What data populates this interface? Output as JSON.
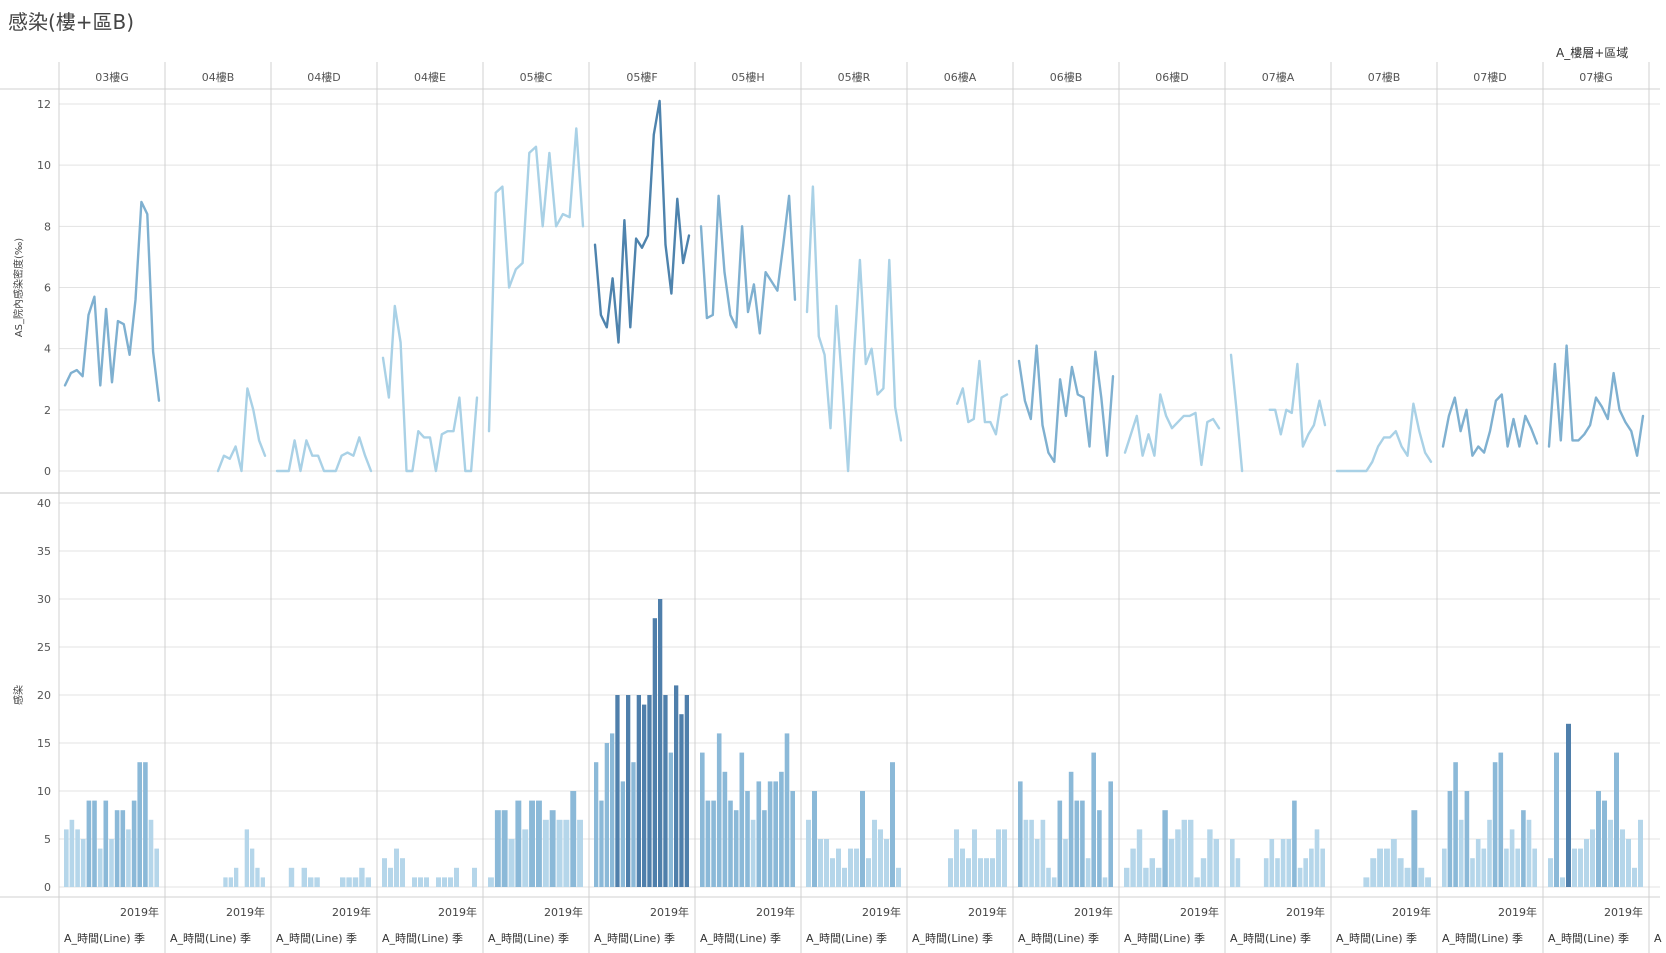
{
  "title": "感染(樓+區B)",
  "legend_title": "A_樓層+區域",
  "year_label": "2019年",
  "footer_label": "A_時間(Line) 季",
  "footer_extra": "A",
  "colors": {
    "line_light": "#a9d1e6",
    "line_mid": "#7fb0d0",
    "line_dark": "#4e83ad",
    "bar_light": "#b5d6ea",
    "bar_mid": "#8bb9d8",
    "bar_dark": "#4f7fab",
    "grid": "#e3e3e3",
    "divider": "#d0d0d0"
  },
  "chart_data": [
    {
      "type": "line",
      "ylabel": "AS_院內感染密度(‰)",
      "ylim": [
        0,
        12
      ],
      "yticks": [
        0,
        2,
        4,
        6,
        8,
        10,
        12
      ],
      "x_axis": "2019年 quarterly (A_時間(Line) 季)",
      "panels": [
        {
          "name": "03樓G",
          "shade": 1,
          "values": [
            2.8,
            3.2,
            3.3,
            3.1,
            5.1,
            5.7,
            2.8,
            5.3,
            2.9,
            4.9,
            4.8,
            3.8,
            5.6,
            8.8,
            8.4,
            3.9,
            2.3
          ]
        },
        {
          "name": "04樓B",
          "shade": 0,
          "values": [
            null,
            null,
            null,
            null,
            null,
            null,
            null,
            null,
            0,
            0.5,
            0.4,
            0.8,
            0,
            2.7,
            2.0,
            1.0,
            0.5
          ]
        },
        {
          "name": "04樓D",
          "shade": 0,
          "values": [
            0,
            0,
            0,
            1.0,
            0,
            1.0,
            0.5,
            0.5,
            0,
            0,
            0,
            0.5,
            0.6,
            0.5,
            1.1,
            0.5,
            0
          ]
        },
        {
          "name": "04樓E",
          "shade": 0,
          "values": [
            3.7,
            2.4,
            5.4,
            4.2,
            0,
            0,
            1.3,
            1.1,
            1.1,
            0,
            1.2,
            1.3,
            1.3,
            2.4,
            0,
            0,
            2.4
          ]
        },
        {
          "name": "05樓C",
          "shade": 0,
          "values": [
            1.3,
            9.1,
            9.3,
            6.0,
            6.6,
            6.8,
            10.4,
            10.6,
            8.0,
            10.4,
            8.0,
            8.4,
            8.3,
            11.2,
            8.0
          ]
        },
        {
          "name": "05樓F",
          "shade": 2,
          "values": [
            7.4,
            5.1,
            4.7,
            6.3,
            4.2,
            8.2,
            4.7,
            7.6,
            7.3,
            7.7,
            11.0,
            12.1,
            7.4,
            5.8,
            8.9,
            6.8,
            7.7
          ]
        },
        {
          "name": "05樓H",
          "shade": 1,
          "values": [
            8.0,
            5.0,
            5.1,
            9.0,
            6.5,
            5.1,
            4.7,
            8.0,
            5.2,
            6.1,
            4.5,
            6.5,
            6.2,
            5.9,
            7.4,
            9.0,
            5.6
          ]
        },
        {
          "name": "05樓R",
          "shade": 0,
          "values": [
            5.2,
            9.3,
            4.4,
            3.8,
            1.4,
            5.4,
            2.8,
            0,
            3.8,
            6.9,
            3.5,
            4.0,
            2.5,
            2.7,
            6.9,
            2.1,
            1.0
          ]
        },
        {
          "name": "06樓A",
          "shade": 0,
          "values": [
            null,
            null,
            null,
            null,
            null,
            null,
            null,
            null,
            2.2,
            2.7,
            1.6,
            1.7,
            3.6,
            1.6,
            1.6,
            1.2,
            2.4,
            2.5
          ]
        },
        {
          "name": "06樓B",
          "shade": 1,
          "values": [
            3.6,
            2.3,
            1.7,
            4.1,
            1.5,
            0.6,
            0.3,
            3.0,
            1.8,
            3.4,
            2.5,
            2.4,
            0.8,
            3.9,
            2.4,
            0.5,
            3.1
          ]
        },
        {
          "name": "06樓D",
          "shade": 0,
          "values": [
            0.6,
            1.2,
            1.8,
            0.5,
            1.2,
            0.5,
            2.5,
            1.8,
            1.4,
            1.6,
            1.8,
            1.8,
            1.9,
            0.2,
            1.6,
            1.7,
            1.4
          ]
        },
        {
          "name": "07樓A",
          "shade": 0,
          "values": [
            3.8,
            2.0,
            0,
            null,
            null,
            null,
            null,
            2.0,
            2.0,
            1.2,
            2.0,
            1.9,
            3.5,
            0.8,
            1.2,
            1.5,
            2.3,
            1.5
          ]
        },
        {
          "name": "07樓B",
          "shade": 0,
          "values": [
            0,
            0,
            0,
            0,
            0,
            0,
            0.3,
            0.8,
            1.1,
            1.1,
            1.3,
            0.8,
            0.5,
            2.2,
            1.3,
            0.6,
            0.3
          ]
        },
        {
          "name": "07樓D",
          "shade": 1,
          "values": [
            0.8,
            1.8,
            2.4,
            1.3,
            2.0,
            0.5,
            0.8,
            0.6,
            1.3,
            2.3,
            2.5,
            0.8,
            1.7,
            0.8,
            1.8,
            1.4,
            0.9
          ]
        },
        {
          "name": "07樓G",
          "shade": 1,
          "values": [
            0.8,
            3.5,
            1.0,
            4.1,
            1.0,
            1.0,
            1.2,
            1.5,
            2.4,
            2.1,
            1.7,
            3.2,
            2.0,
            1.6,
            1.3,
            0.5,
            1.8
          ]
        }
      ]
    },
    {
      "type": "bar",
      "ylabel": "感染",
      "ylim": [
        0,
        40
      ],
      "yticks": [
        0,
        5,
        10,
        15,
        20,
        25,
        30,
        35,
        40
      ],
      "x_axis": "2019年 quarterly (A_時間(Line) 季)",
      "panels": [
        {
          "name": "03樓G",
          "values": [
            6,
            7,
            6,
            5,
            9,
            9,
            4,
            9,
            5,
            8,
            8,
            6,
            9,
            13,
            13,
            7,
            4
          ]
        },
        {
          "name": "04樓B",
          "values": [
            0,
            0,
            0,
            0,
            0,
            0,
            0,
            0,
            0,
            0,
            1,
            1,
            2,
            0,
            6,
            4,
            2,
            1
          ]
        },
        {
          "name": "04樓D",
          "values": [
            0,
            0,
            2,
            0,
            2,
            1,
            1,
            0,
            0,
            0,
            1,
            1,
            1,
            2,
            1
          ]
        },
        {
          "name": "04樓E",
          "values": [
            3,
            2,
            4,
            3,
            0,
            1,
            1,
            1,
            0,
            1,
            1,
            1,
            2,
            0,
            0,
            2
          ]
        },
        {
          "name": "05樓C",
          "values": [
            1,
            8,
            8,
            5,
            9,
            6,
            9,
            9,
            7,
            8,
            7,
            7,
            10,
            7
          ]
        },
        {
          "name": "05樓F",
          "values": [
            13,
            9,
            15,
            16,
            20,
            11,
            20,
            13,
            20,
            19,
            20,
            28,
            30,
            20,
            14,
            21,
            18,
            20
          ]
        },
        {
          "name": "05樓H",
          "values": [
            14,
            9,
            9,
            16,
            12,
            9,
            8,
            14,
            10,
            7,
            11,
            8,
            11,
            11,
            12,
            16,
            10
          ]
        },
        {
          "name": "05樓R",
          "values": [
            7,
            10,
            5,
            5,
            3,
            4,
            2,
            4,
            4,
            10,
            3,
            7,
            6,
            5,
            13,
            2
          ]
        },
        {
          "name": "06樓A",
          "values": [
            0,
            0,
            0,
            0,
            0,
            0,
            3,
            6,
            4,
            3,
            6,
            3,
            3,
            3,
            6,
            6
          ]
        },
        {
          "name": "06樓B",
          "values": [
            11,
            7,
            7,
            5,
            7,
            2,
            1,
            9,
            5,
            12,
            9,
            9,
            3,
            14,
            8,
            1,
            11
          ]
        },
        {
          "name": "06樓D",
          "values": [
            2,
            4,
            6,
            2,
            3,
            2,
            8,
            5,
            6,
            7,
            7,
            1,
            3,
            6,
            5
          ]
        },
        {
          "name": "07樓A",
          "values": [
            5,
            3,
            0,
            0,
            0,
            0,
            3,
            5,
            3,
            5,
            5,
            9,
            2,
            3,
            4,
            6,
            4
          ]
        },
        {
          "name": "07樓B",
          "values": [
            0,
            0,
            0,
            0,
            1,
            3,
            4,
            4,
            5,
            3,
            2,
            8,
            2,
            1
          ]
        },
        {
          "name": "07樓D",
          "values": [
            4,
            10,
            13,
            7,
            10,
            3,
            5,
            4,
            7,
            13,
            14,
            4,
            6,
            4,
            8,
            7,
            4
          ]
        },
        {
          "name": "07樓G",
          "values": [
            3,
            14,
            1,
            17,
            4,
            4,
            5,
            6,
            10,
            9,
            7,
            14,
            6,
            5,
            2,
            7
          ]
        }
      ]
    }
  ]
}
